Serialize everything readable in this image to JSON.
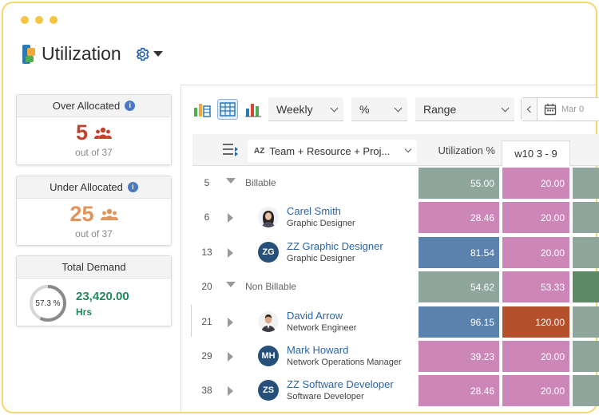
{
  "app": {
    "title": "Utilization"
  },
  "kpis": {
    "over": {
      "label": "Over Allocated",
      "value": "5",
      "sub": "out of 37",
      "color": "#c0442b"
    },
    "under": {
      "label": "Under Allocated",
      "value": "25",
      "sub": "out of 37",
      "color": "#e0935a"
    },
    "demand": {
      "label": "Total Demand",
      "percent_label": "57.3 %",
      "percent": 57.3,
      "value": "23,420.00",
      "unit": "Hrs",
      "color": "#1f8a5b"
    }
  },
  "toolbar": {
    "period": "Weekly",
    "unit": "%",
    "range": "Range",
    "date_placeholder": "Mar 0"
  },
  "grid": {
    "grouping": "Team + Resource + Proj...",
    "grouping_prefix": "AZ",
    "col_util": "Utilization %",
    "col_week": "w10  3 - 9",
    "rows": [
      {
        "num": "5",
        "type": "group",
        "label": "Billable",
        "util": "55.00",
        "week": "20.00",
        "util_color": "#8fa69c",
        "week_color": "#cc86b8",
        "next_color": "#8fa69c"
      },
      {
        "num": "6",
        "type": "person",
        "name": "Carel Smith",
        "role": "Graphic Designer",
        "avatar": "photo-f",
        "util": "28.46",
        "week": "20.00",
        "util_color": "#cc86b8",
        "week_color": "#cc86b8",
        "next_color": "#8fa69c"
      },
      {
        "num": "13",
        "type": "person",
        "name": "ZZ Graphic Designer",
        "role": "Graphic Designer",
        "avatar": "ZG",
        "util": "81.54",
        "week": "20.00",
        "util_color": "#5b82ad",
        "week_color": "#cc86b8",
        "next_color": "#8fa69c"
      },
      {
        "num": "20",
        "type": "group",
        "label": "Non Billable",
        "util": "54.62",
        "week": "53.33",
        "util_color": "#8fa69c",
        "week_color": "#cc86b8",
        "next_color": "#5d8a64"
      },
      {
        "num": "21",
        "type": "person",
        "name": "David Arrow",
        "role": "Network Engineer",
        "avatar": "photo-m",
        "util": "96.15",
        "week": "120.00",
        "util_color": "#5b82ad",
        "week_color": "#b5502c",
        "next_color": "#8fa69c"
      },
      {
        "num": "29",
        "type": "person",
        "name": "Mark Howard",
        "role": "Network Operations Manager",
        "avatar": "MH",
        "util": "39.23",
        "week": "20.00",
        "util_color": "#cc86b8",
        "week_color": "#cc86b8",
        "next_color": "#8fa69c"
      },
      {
        "num": "38",
        "type": "person",
        "name": "ZZ Software Developer",
        "role": "Software Developer",
        "avatar": "ZS",
        "util": "28.46",
        "week": "20.00",
        "util_color": "#cc86b8",
        "week_color": "#cc86b8",
        "next_color": "#8fa69c"
      }
    ]
  }
}
